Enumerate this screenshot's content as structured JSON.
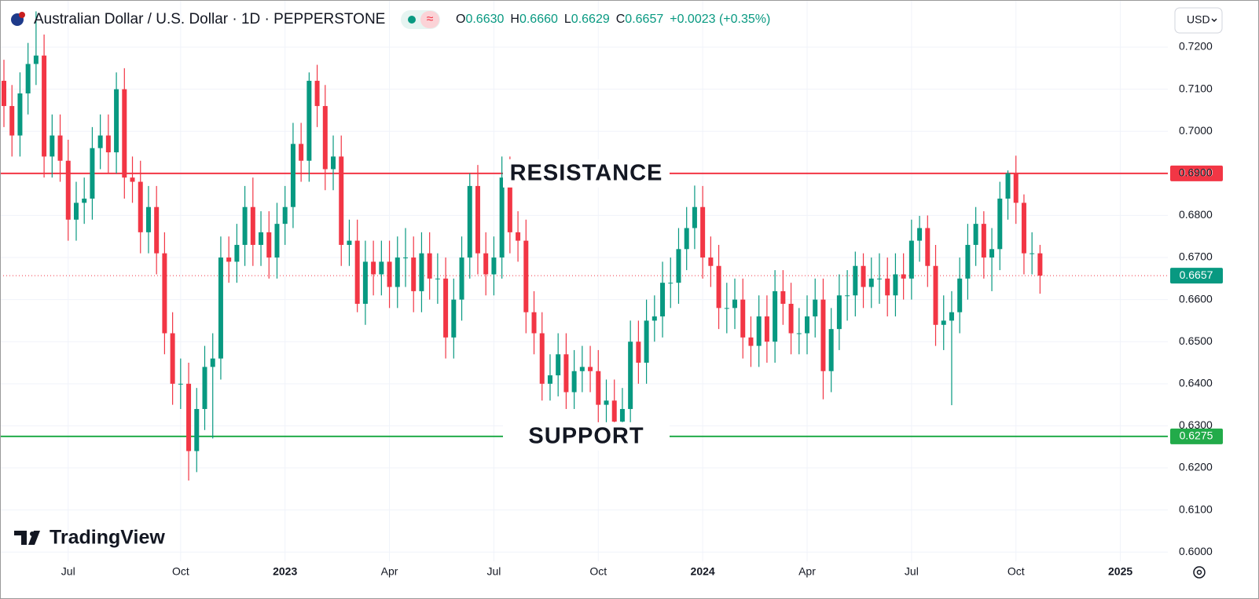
{
  "header": {
    "title": "Australian Dollar / U.S. Dollar · 1D · PEPPERSTONE",
    "ohlc": [
      {
        "key": "O",
        "value": "0.6630"
      },
      {
        "key": "H",
        "value": "0.6660"
      },
      {
        "key": "L",
        "value": "0.6629"
      },
      {
        "key": "C",
        "value": "0.6657"
      }
    ],
    "change": "+0.0023 (+0.35%)",
    "currency": "USD"
  },
  "watermark": "TradingView",
  "chart_data": {
    "type": "candlestick",
    "up_color": "#089981",
    "down_color": "#f23645",
    "grid": true,
    "categories": [
      null,
      null,
      null,
      null,
      null,
      null,
      null,
      null,
      "Jul",
      null,
      null,
      null,
      null,
      null,
      null,
      null,
      null,
      null,
      null,
      null,
      null,
      null,
      "Oct",
      null,
      null,
      null,
      null,
      null,
      null,
      null,
      null,
      null,
      null,
      null,
      null,
      "2023",
      null,
      null,
      null,
      null,
      null,
      null,
      null,
      null,
      null,
      null,
      null,
      null,
      "Apr",
      null,
      null,
      null,
      null,
      null,
      null,
      null,
      null,
      null,
      null,
      null,
      null,
      "Jul",
      null,
      null,
      null,
      null,
      null,
      null,
      null,
      null,
      null,
      null,
      null,
      null,
      "Oct",
      null,
      null,
      null,
      null,
      null,
      null,
      null,
      null,
      null,
      null,
      null,
      null,
      "2024",
      null,
      null,
      null,
      null,
      null,
      null,
      null,
      null,
      null,
      null,
      null,
      null,
      "Apr",
      null,
      null,
      null,
      null,
      null,
      null,
      null,
      null,
      null,
      null,
      null,
      null,
      "Jul",
      null,
      null,
      null,
      null,
      null,
      null,
      null,
      null,
      null,
      null,
      null,
      null,
      "Oct",
      null,
      null,
      null,
      null,
      null,
      null,
      null,
      null,
      null,
      null,
      null,
      null,
      "2025"
    ],
    "open": [
      0.712,
      0.706,
      0.699,
      0.709,
      0.716,
      0.718,
      0.694,
      0.699,
      0.693,
      0.679,
      0.683,
      0.684,
      0.696,
      0.699,
      0.695,
      0.71,
      0.689,
      0.688,
      0.676,
      0.682,
      0.671,
      0.652,
      0.64,
      0.64,
      0.624,
      0.634,
      0.644,
      0.646,
      0.67,
      0.669,
      0.673,
      0.682,
      0.673,
      0.676,
      0.67,
      0.678,
      0.682,
      0.697,
      0.693,
      0.712,
      0.706,
      0.691,
      0.694,
      0.673,
      0.674,
      0.659,
      0.669,
      0.666,
      0.669,
      0.663,
      0.67,
      0.67,
      0.662,
      0.671,
      0.665,
      0.665,
      0.651,
      0.66,
      0.67,
      0.687,
      0.671,
      0.666,
      0.67,
      0.689,
      0.676,
      0.674,
      0.657,
      0.652,
      0.64,
      0.642,
      0.647,
      0.638,
      0.643,
      0.644,
      0.643,
      0.635,
      0.636,
      0.631,
      0.634,
      0.65,
      0.645,
      0.655,
      0.656,
      0.664,
      0.664,
      0.672,
      0.677,
      0.682,
      0.67,
      0.668,
      0.658,
      0.658,
      0.66,
      0.651,
      0.649,
      0.656,
      0.65,
      0.662,
      0.659,
      0.652,
      0.652,
      0.656,
      0.66,
      0.643,
      0.653,
      0.661,
      0.661,
      0.668,
      0.663,
      0.665,
      0.665,
      0.661,
      0.666,
      0.665,
      0.674,
      0.677,
      0.668,
      0.654,
      0.655,
      0.657,
      0.665,
      0.673,
      0.678,
      0.67,
      0.672,
      0.684,
      0.69,
      0.683,
      0.671,
      0.671,
      null,
      null,
      null,
      null,
      null,
      null,
      null,
      null,
      null,
      null
    ],
    "high": [
      0.717,
      0.711,
      0.714,
      0.721,
      0.7285,
      0.723,
      0.704,
      0.704,
      0.698,
      0.688,
      0.689,
      0.701,
      0.704,
      0.704,
      0.714,
      0.715,
      0.694,
      0.693,
      0.687,
      0.687,
      0.676,
      0.657,
      0.646,
      0.645,
      0.639,
      0.649,
      0.652,
      0.675,
      0.675,
      0.678,
      0.687,
      0.689,
      0.681,
      0.681,
      0.683,
      0.687,
      0.702,
      0.702,
      0.714,
      0.7158,
      0.711,
      0.699,
      0.699,
      0.679,
      0.679,
      0.674,
      0.674,
      0.674,
      0.674,
      0.675,
      0.677,
      0.675,
      0.676,
      0.676,
      0.671,
      0.67,
      0.665,
      0.675,
      0.69,
      0.692,
      0.676,
      0.675,
      0.694,
      0.694,
      0.681,
      0.679,
      0.662,
      0.657,
      0.647,
      0.652,
      0.652,
      0.648,
      0.649,
      0.649,
      0.648,
      0.641,
      0.641,
      0.639,
      0.655,
      0.655,
      0.66,
      0.661,
      0.669,
      0.67,
      0.677,
      0.682,
      0.6871,
      0.687,
      0.675,
      0.673,
      0.664,
      0.665,
      0.665,
      0.656,
      0.661,
      0.661,
      0.667,
      0.667,
      0.664,
      0.658,
      0.661,
      0.665,
      0.665,
      0.658,
      0.666,
      0.667,
      0.6714,
      0.671,
      0.67,
      0.671,
      0.67,
      0.671,
      0.671,
      0.679,
      0.6799,
      0.68,
      0.673,
      0.661,
      0.662,
      0.67,
      0.678,
      0.682,
      0.681,
      0.677,
      0.688,
      0.6907,
      0.6942,
      0.685,
      0.676,
      0.673,
      null,
      null,
      null,
      null,
      null,
      null,
      null,
      null,
      null,
      null
    ],
    "low": [
      0.701,
      0.694,
      0.694,
      0.704,
      0.711,
      0.689,
      0.689,
      0.688,
      0.674,
      0.674,
      0.678,
      0.679,
      0.691,
      0.69,
      0.69,
      0.684,
      0.683,
      0.671,
      0.671,
      0.666,
      0.647,
      0.635,
      0.634,
      0.617,
      0.619,
      0.629,
      0.627,
      0.641,
      0.664,
      0.664,
      0.668,
      0.668,
      0.668,
      0.665,
      0.665,
      0.673,
      0.677,
      0.688,
      0.688,
      0.701,
      0.686,
      0.686,
      0.668,
      0.668,
      0.657,
      0.654,
      0.661,
      0.661,
      0.658,
      0.658,
      0.663,
      0.657,
      0.657,
      0.66,
      0.659,
      0.646,
      0.646,
      0.655,
      0.665,
      0.666,
      0.661,
      0.661,
      0.665,
      0.671,
      0.669,
      0.652,
      0.647,
      0.636,
      0.636,
      0.637,
      0.634,
      0.634,
      0.638,
      0.638,
      0.63,
      0.627,
      0.628,
      0.629,
      0.629,
      0.64,
      0.64,
      0.65,
      0.651,
      0.658,
      0.659,
      0.667,
      0.672,
      0.665,
      0.663,
      0.653,
      0.652,
      0.653,
      0.646,
      0.644,
      0.644,
      0.645,
      0.645,
      0.654,
      0.647,
      0.647,
      0.647,
      0.651,
      0.6363,
      0.638,
      0.648,
      0.655,
      0.656,
      0.658,
      0.658,
      0.659,
      0.656,
      0.656,
      0.66,
      0.66,
      0.669,
      0.663,
      0.649,
      0.648,
      0.6349,
      0.652,
      0.66,
      0.668,
      0.665,
      0.662,
      0.667,
      0.679,
      0.678,
      0.666,
      0.666,
      0.6614,
      null,
      null,
      null,
      null,
      null,
      null,
      null,
      null,
      null,
      null
    ],
    "close": [
      0.706,
      0.699,
      0.709,
      0.716,
      0.718,
      0.694,
      0.699,
      0.693,
      0.679,
      0.683,
      0.684,
      0.696,
      0.699,
      0.695,
      0.71,
      0.689,
      0.688,
      0.676,
      0.682,
      0.671,
      0.652,
      0.64,
      0.64,
      0.624,
      0.634,
      0.644,
      0.646,
      0.67,
      0.669,
      0.673,
      0.682,
      0.673,
      0.676,
      0.67,
      0.678,
      0.682,
      0.697,
      0.693,
      0.712,
      0.706,
      0.691,
      0.694,
      0.673,
      0.674,
      0.659,
      0.669,
      0.666,
      0.669,
      0.663,
      0.67,
      0.67,
      0.662,
      0.671,
      0.665,
      0.665,
      0.651,
      0.66,
      0.67,
      0.687,
      0.671,
      0.666,
      0.67,
      0.689,
      0.676,
      0.674,
      0.657,
      0.652,
      0.64,
      0.642,
      0.647,
      0.638,
      0.643,
      0.644,
      0.643,
      0.635,
      0.636,
      0.631,
      0.634,
      0.65,
      0.645,
      0.655,
      0.656,
      0.664,
      0.664,
      0.672,
      0.677,
      0.682,
      0.67,
      0.668,
      0.658,
      0.658,
      0.66,
      0.651,
      0.649,
      0.656,
      0.65,
      0.662,
      0.659,
      0.652,
      0.652,
      0.656,
      0.66,
      0.643,
      0.653,
      0.661,
      0.661,
      0.668,
      0.663,
      0.665,
      0.665,
      0.661,
      0.666,
      0.665,
      0.674,
      0.677,
      0.668,
      0.654,
      0.655,
      0.657,
      0.665,
      0.673,
      0.678,
      0.67,
      0.672,
      0.684,
      0.69,
      0.683,
      0.671,
      0.671,
      0.6657,
      null,
      null,
      null,
      null,
      null,
      null,
      null,
      null,
      null,
      null
    ],
    "ylim": [
      0.5978,
      0.7312
    ],
    "yticks": [
      {
        "value": 0.6,
        "label": "0.6000"
      },
      {
        "value": 0.61,
        "label": "0.6100"
      },
      {
        "value": 0.62,
        "label": "0.6200"
      },
      {
        "value": 0.63,
        "label": "0.6300"
      },
      {
        "value": 0.64,
        "label": "0.6400"
      },
      {
        "value": 0.65,
        "label": "0.6500"
      },
      {
        "value": 0.66,
        "label": "0.6600"
      },
      {
        "value": 0.67,
        "label": "0.6700"
      },
      {
        "value": 0.68,
        "label": "0.6800"
      },
      {
        "value": 0.69,
        "label": "0.6900"
      },
      {
        "value": 0.7,
        "label": "0.7000"
      },
      {
        "value": 0.71,
        "label": "0.7100"
      },
      {
        "value": 0.72,
        "label": "0.7200"
      }
    ],
    "levels": [
      {
        "name": "RESISTANCE",
        "value": 0.69,
        "label": "0.6900",
        "color": "#f23645"
      },
      {
        "name": "SUPPORT",
        "value": 0.6275,
        "label": "0.6275",
        "color": "#22ab4a"
      }
    ],
    "last_price": {
      "value": 0.6657,
      "label": "0.6657",
      "color": "#089981",
      "line_color": "#f23645"
    }
  }
}
